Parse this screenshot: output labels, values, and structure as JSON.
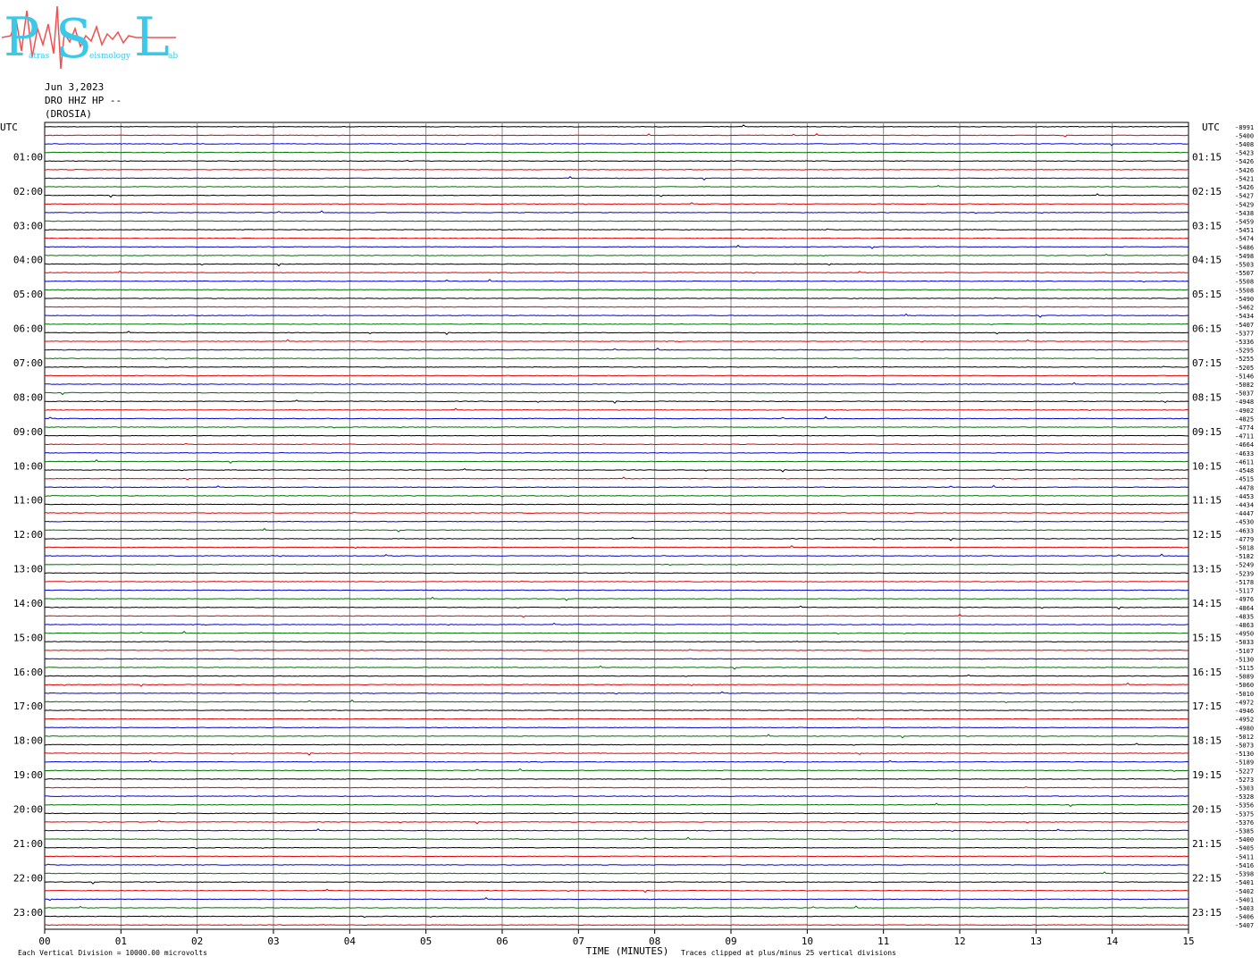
{
  "logo": {
    "letters": [
      "P",
      "S",
      "L"
    ],
    "words": [
      "atras",
      "eismology",
      "ab"
    ]
  },
  "header": {
    "date": "Jun 3,2023",
    "channel": "DRO HHZ HP --",
    "station": "(DROSIA)"
  },
  "chart_data": {
    "type": "line",
    "title": "",
    "xlabel": "TIME (MINUTES)",
    "xlim": [
      0,
      15
    ],
    "x_ticks": [
      "00",
      "01",
      "02",
      "03",
      "04",
      "05",
      "06",
      "07",
      "08",
      "09",
      "10",
      "11",
      "12",
      "13",
      "14",
      "15"
    ],
    "left_axis_label": "UTC",
    "right_axis_label": "UTC",
    "left_hour_labels": [
      "01:00",
      "02:00",
      "03:00",
      "04:00",
      "05:00",
      "06:00",
      "07:00",
      "08:00",
      "09:00",
      "10:00",
      "11:00",
      "12:00",
      "13:00",
      "14:00",
      "15:00",
      "16:00",
      "17:00",
      "18:00",
      "19:00",
      "20:00",
      "21:00",
      "22:00",
      "23:00"
    ],
    "right_hour_labels": [
      "01:15",
      "02:15",
      "03:15",
      "04:15",
      "05:15",
      "06:15",
      "07:15",
      "08:15",
      "09:15",
      "10:15",
      "11:15",
      "12:15",
      "13:15",
      "14:15",
      "15:15",
      "16:15",
      "17:15",
      "18:15",
      "19:15",
      "20:15",
      "21:15",
      "22:15",
      "23:15"
    ],
    "trace_colors": [
      "#000000",
      "#e00000",
      "#0000d0",
      "#007000"
    ],
    "trace_offsets": [
      "-8991",
      "-5400",
      "-5408",
      "-5423",
      "-5426",
      "-5426",
      "-5421",
      "-5426",
      "-5427",
      "-5429",
      "-5438",
      "-5459",
      "-5451",
      "-5474",
      "-5486",
      "-5498",
      "-5503",
      "-5507",
      "-5508",
      "-5508",
      "-5490",
      "-5462",
      "-5434",
      "-5407",
      "-5377",
      "-5336",
      "-5295",
      "-5255",
      "-5205",
      "-5146",
      "-5082",
      "-5037",
      "-4948",
      "-4902",
      "-4825",
      "-4774",
      "-4711",
      "-4664",
      "-4633",
      "-4611",
      "-4548",
      "-4515",
      "-4478",
      "-4453",
      "-4434",
      "-4447",
      "-4530",
      "-4633",
      "-4779",
      "-5018",
      "-5182",
      "-5249",
      "-5239",
      "-5178",
      "-5117",
      "-4976",
      "-4864",
      "-4835",
      "-4863",
      "-4950",
      "-5033",
      "-5107",
      "-5130",
      "-5115",
      "-5089",
      "-5060",
      "-5010",
      "-4972",
      "-4946",
      "-4952",
      "-4980",
      "-5012",
      "-5073",
      "-5130",
      "-5189",
      "-5227",
      "-5273",
      "-5303",
      "-5328",
      "-5356",
      "-5375",
      "-5376",
      "-5385",
      "-5400",
      "-5405",
      "-5411",
      "-5416",
      "-5398",
      "-5401",
      "-5402",
      "-5401",
      "-5403",
      "-5406",
      "-5407"
    ],
    "footer_note_left": "Each Vertical Division = 10000.00 microvolts",
    "footer_note_right": "Traces clipped at plus/minus 25 vertical divisions",
    "grid": true
  }
}
